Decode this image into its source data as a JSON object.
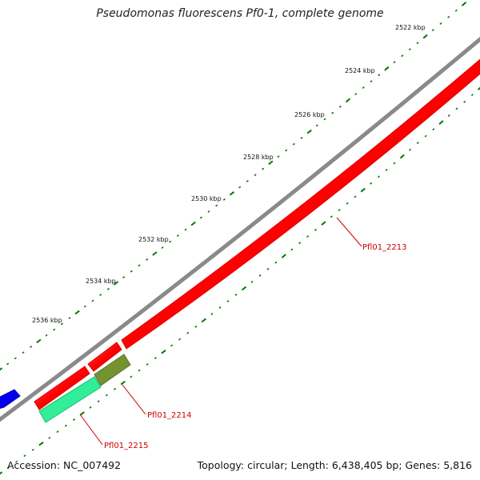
{
  "title": "Pseudomonas fluorescens Pf0-1, complete genome",
  "footer": {
    "accession": "Accession: NC_007492",
    "summary": "Topology: circular; Length: 6,438,405 bp; Genes: 5,816"
  },
  "ticks": [
    {
      "label": "2522 kbp"
    },
    {
      "label": "2524 kbp"
    },
    {
      "label": "2526 kbp"
    },
    {
      "label": "2528 kbp"
    },
    {
      "label": "2530 kbp"
    },
    {
      "label": "2532 kbp"
    },
    {
      "label": "2534 kbp"
    },
    {
      "label": "2536 kbp"
    }
  ],
  "genes": [
    {
      "label": "Pfl01_2213",
      "color": "#ff0000"
    },
    {
      "label": "Pfl01_2214",
      "color": "#ff0000"
    },
    {
      "label": "Pfl01_2215",
      "color": "#ff0000"
    }
  ],
  "colors": {
    "backbone": "#8a8a8a",
    "forward_gene": "#ff0000",
    "reverse_gene": "#0000ff",
    "feature_green": "#6b8e23",
    "feature_teal": "#33ee99",
    "ticks": "#007700",
    "label_lines": "#cc0000"
  }
}
